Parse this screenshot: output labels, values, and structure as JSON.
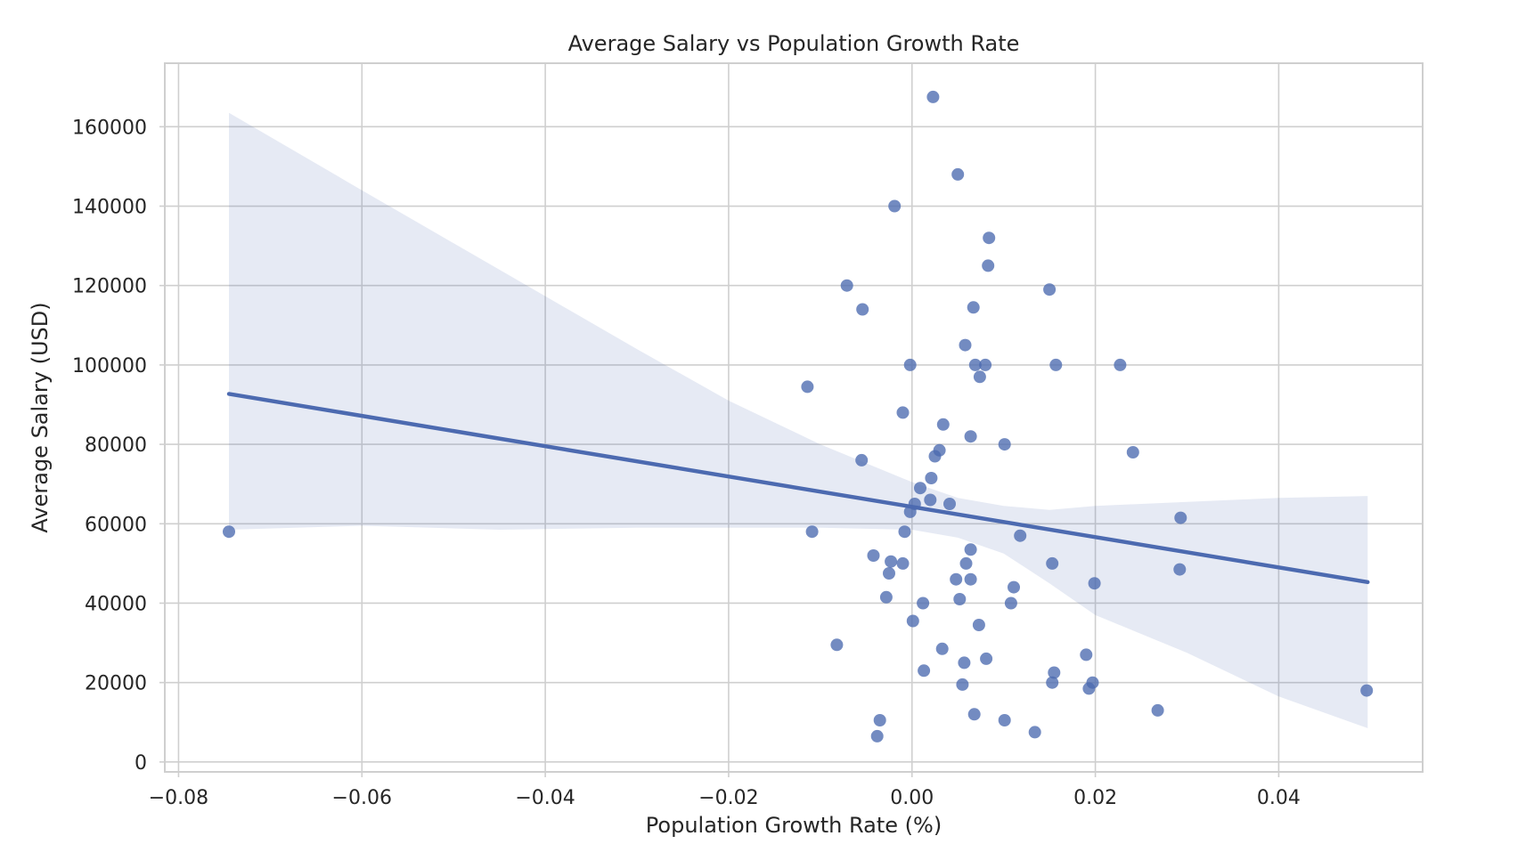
{
  "chart_data": {
    "type": "scatter",
    "title": "Average Salary vs Population Growth Rate",
    "xlabel": "Population Growth Rate (%)",
    "ylabel": "Average Salary (USD)",
    "xlim": [
      -0.0815,
      0.0557
    ],
    "ylim": [
      -2500,
      176000
    ],
    "xticks": [
      -0.08,
      -0.06,
      -0.04,
      -0.02,
      0.0,
      0.02,
      0.04
    ],
    "xtick_labels": [
      "−0.08",
      "−0.06",
      "−0.04",
      "−0.02",
      "0.00",
      "0.02",
      "0.04"
    ],
    "yticks": [
      0,
      20000,
      40000,
      60000,
      80000,
      100000,
      120000,
      140000,
      160000
    ],
    "ytick_labels": [
      "0",
      "20000",
      "40000",
      "60000",
      "80000",
      "100000",
      "120000",
      "140000",
      "160000"
    ],
    "grid": true,
    "series_color": "#4c6ab0",
    "regression": {
      "x": [
        -0.0745,
        0.0497
      ],
      "y": [
        92700,
        45300
      ]
    },
    "ci_band": {
      "x": [
        -0.0745,
        -0.06,
        -0.045,
        -0.03,
        -0.02,
        -0.01,
        0.0,
        0.005,
        0.01,
        0.015,
        0.02,
        0.03,
        0.04,
        0.0497
      ],
      "upper": [
        163500,
        144000,
        124000,
        104000,
        91000,
        80000,
        70500,
        66500,
        64500,
        63500,
        64500,
        65500,
        66500,
        67000
      ],
      "lower": [
        58500,
        59500,
        58500,
        59000,
        59000,
        59000,
        58500,
        56500,
        52500,
        45000,
        37000,
        27500,
        16500,
        8500
      ]
    },
    "points": [
      {
        "x": 0.0023,
        "y": 167500
      },
      {
        "x": 0.005,
        "y": 148000
      },
      {
        "x": -0.0019,
        "y": 140000
      },
      {
        "x": 0.0084,
        "y": 132000
      },
      {
        "x": 0.0083,
        "y": 125000
      },
      {
        "x": -0.0071,
        "y": 120000
      },
      {
        "x": 0.015,
        "y": 119000
      },
      {
        "x": -0.0054,
        "y": 114000
      },
      {
        "x": 0.0067,
        "y": 114500
      },
      {
        "x": 0.0058,
        "y": 105000
      },
      {
        "x": -0.0002,
        "y": 100000
      },
      {
        "x": 0.0069,
        "y": 100000
      },
      {
        "x": 0.008,
        "y": 100000
      },
      {
        "x": 0.0157,
        "y": 100000
      },
      {
        "x": 0.0227,
        "y": 100000
      },
      {
        "x": 0.0074,
        "y": 97000
      },
      {
        "x": -0.0114,
        "y": 94500
      },
      {
        "x": -0.001,
        "y": 88000
      },
      {
        "x": 0.0034,
        "y": 85000
      },
      {
        "x": 0.0064,
        "y": 82000
      },
      {
        "x": 0.0101,
        "y": 80000
      },
      {
        "x": 0.003,
        "y": 78500
      },
      {
        "x": 0.0241,
        "y": 78000
      },
      {
        "x": 0.0025,
        "y": 77000
      },
      {
        "x": -0.0055,
        "y": 76000
      },
      {
        "x": 0.0021,
        "y": 71500
      },
      {
        "x": 0.0009,
        "y": 69000
      },
      {
        "x": 0.002,
        "y": 66000
      },
      {
        "x": 0.0003,
        "y": 65000
      },
      {
        "x": 0.0041,
        "y": 65000
      },
      {
        "x": -0.0002,
        "y": 63000
      },
      {
        "x": 0.0293,
        "y": 61500
      },
      {
        "x": -0.0745,
        "y": 58000
      },
      {
        "x": -0.0109,
        "y": 58000
      },
      {
        "x": -0.0008,
        "y": 58000
      },
      {
        "x": 0.0118,
        "y": 57000
      },
      {
        "x": 0.0064,
        "y": 53500
      },
      {
        "x": -0.0042,
        "y": 52000
      },
      {
        "x": -0.0023,
        "y": 50500
      },
      {
        "x": -0.001,
        "y": 50000
      },
      {
        "x": 0.0059,
        "y": 50000
      },
      {
        "x": 0.0153,
        "y": 50000
      },
      {
        "x": 0.0292,
        "y": 48500
      },
      {
        "x": -0.0025,
        "y": 47500
      },
      {
        "x": 0.0048,
        "y": 46000
      },
      {
        "x": 0.0064,
        "y": 46000
      },
      {
        "x": 0.0199,
        "y": 45000
      },
      {
        "x": 0.0111,
        "y": 44000
      },
      {
        "x": -0.0028,
        "y": 41500
      },
      {
        "x": 0.0052,
        "y": 41000
      },
      {
        "x": 0.0012,
        "y": 40000
      },
      {
        "x": 0.0108,
        "y": 40000
      },
      {
        "x": 0.0073,
        "y": 34500
      },
      {
        "x": 0.0001,
        "y": 35500
      },
      {
        "x": -0.0082,
        "y": 29500
      },
      {
        "x": 0.0033,
        "y": 28500
      },
      {
        "x": 0.019,
        "y": 27000
      },
      {
        "x": 0.0081,
        "y": 26000
      },
      {
        "x": 0.0057,
        "y": 25000
      },
      {
        "x": 0.0013,
        "y": 23000
      },
      {
        "x": 0.0155,
        "y": 22500
      },
      {
        "x": 0.0055,
        "y": 19500
      },
      {
        "x": 0.0153,
        "y": 20000
      },
      {
        "x": 0.0197,
        "y": 20000
      },
      {
        "x": 0.0193,
        "y": 18500
      },
      {
        "x": 0.0496,
        "y": 18000
      },
      {
        "x": 0.0268,
        "y": 13000
      },
      {
        "x": 0.0068,
        "y": 12000
      },
      {
        "x": -0.0035,
        "y": 10500
      },
      {
        "x": 0.0101,
        "y": 10500
      },
      {
        "x": 0.0134,
        "y": 7500
      },
      {
        "x": -0.0038,
        "y": 6500
      }
    ]
  }
}
